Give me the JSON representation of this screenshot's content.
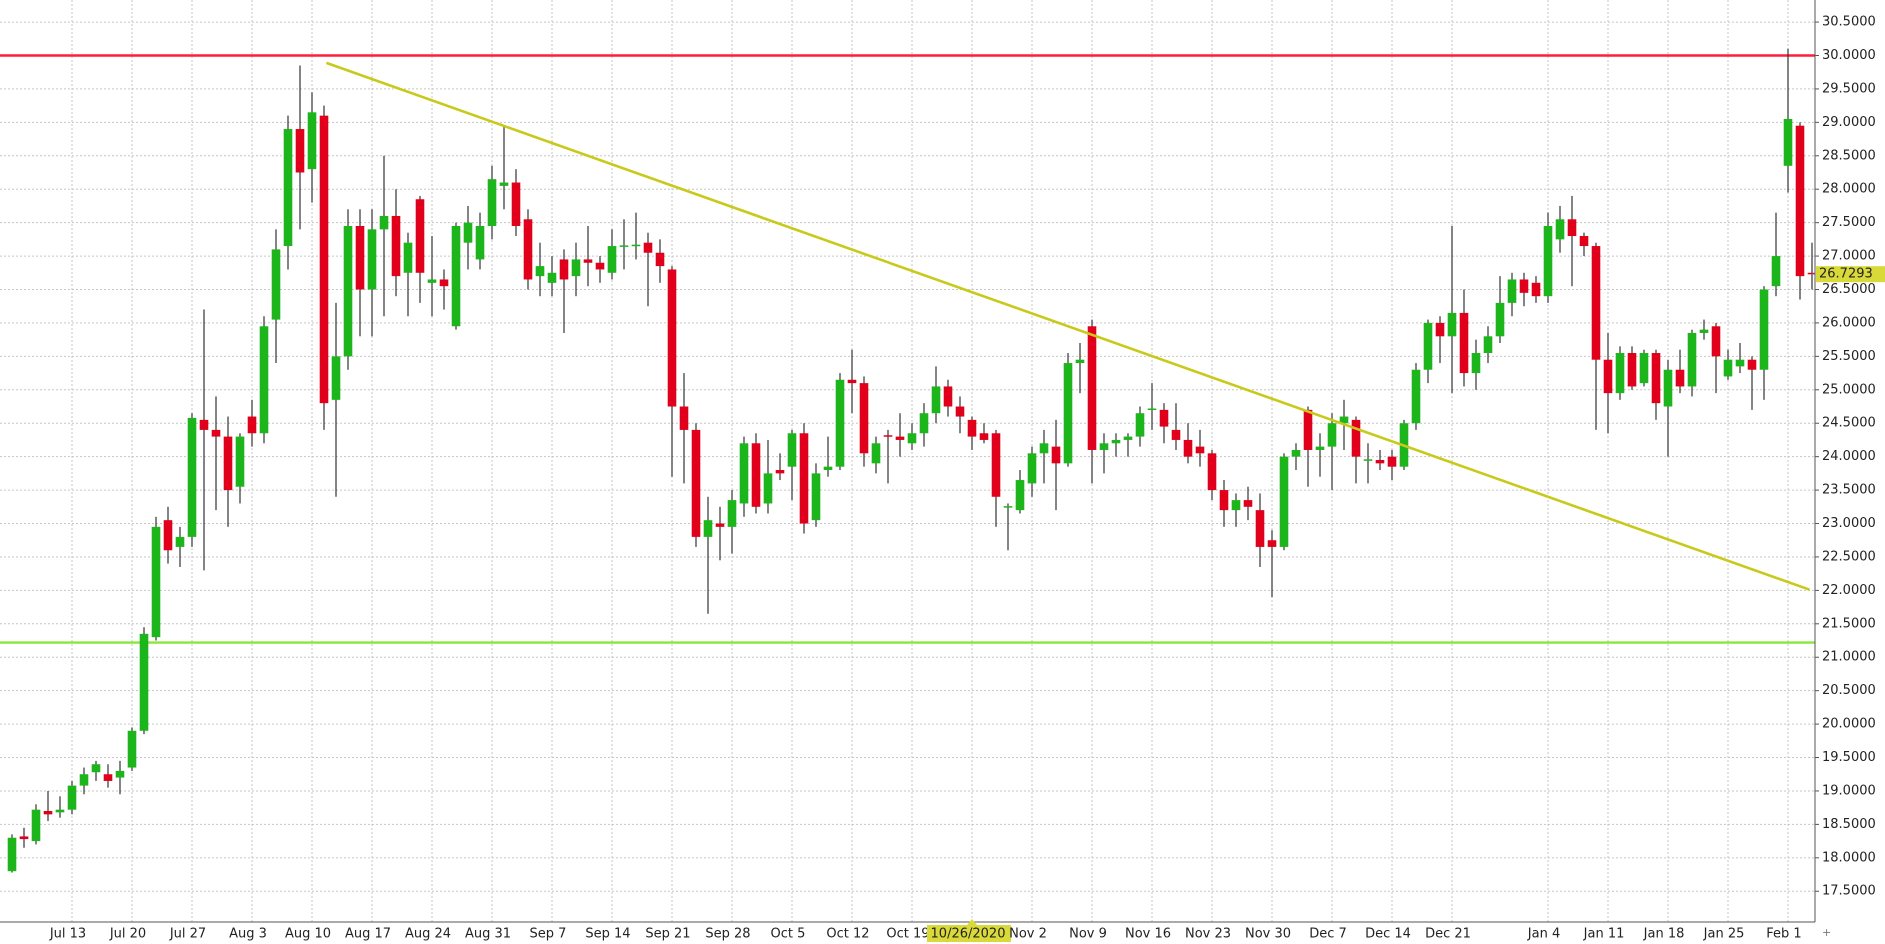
{
  "chart_data": {
    "type": "candlestick",
    "up_color": "#1cb51c",
    "down_color": "#e0001b",
    "doji_color": "#2a4a2a",
    "grid": true,
    "ylim": [
      17.04,
      30.83
    ],
    "yticks": [
      {
        "value": 17.5,
        "label": "17.5000"
      },
      {
        "value": 18,
        "label": "18.0000"
      },
      {
        "value": 18.5,
        "label": "18.5000"
      },
      {
        "value": 19,
        "label": "19.0000"
      },
      {
        "value": 19.5,
        "label": "19.5000"
      },
      {
        "value": 20,
        "label": "20.0000"
      },
      {
        "value": 20.5,
        "label": "20.5000"
      },
      {
        "value": 21,
        "label": "21.0000"
      },
      {
        "value": 21.5,
        "label": "21.5000"
      },
      {
        "value": 22,
        "label": "22.0000"
      },
      {
        "value": 22.5,
        "label": "22.5000"
      },
      {
        "value": 23,
        "label": "23.0000"
      },
      {
        "value": 23.5,
        "label": "23.5000"
      },
      {
        "value": 24,
        "label": "24.0000"
      },
      {
        "value": 24.5,
        "label": "24.5000"
      },
      {
        "value": 25,
        "label": "25.0000"
      },
      {
        "value": 25.5,
        "label": "25.5000"
      },
      {
        "value": 26,
        "label": "26.0000"
      },
      {
        "value": 26.5,
        "label": "26.5000"
      },
      {
        "value": 27,
        "label": "27.0000"
      },
      {
        "value": 27.5,
        "label": "27.5000"
      },
      {
        "value": 28,
        "label": "28.0000"
      },
      {
        "value": 28.5,
        "label": "28.5000"
      },
      {
        "value": 29,
        "label": "29.0000"
      },
      {
        "value": 29.5,
        "label": "29.5000"
      },
      {
        "value": 30,
        "label": "30.0000"
      },
      {
        "value": 30.5,
        "label": "30.5000"
      }
    ],
    "highlight_index": 80,
    "categories": [
      null,
      null,
      null,
      null,
      null,
      "Jul 13",
      null,
      null,
      null,
      null,
      "Jul 20",
      null,
      null,
      null,
      null,
      "Jul 27",
      null,
      null,
      null,
      null,
      "Aug 3",
      null,
      null,
      null,
      null,
      "Aug 10",
      null,
      null,
      null,
      null,
      "Aug 17",
      null,
      null,
      null,
      null,
      "Aug 24",
      null,
      null,
      null,
      null,
      "Aug 31",
      null,
      null,
      null,
      null,
      "Sep 7",
      null,
      null,
      null,
      null,
      "Sep 14",
      null,
      null,
      null,
      null,
      "Sep 21",
      null,
      null,
      null,
      null,
      "Sep 28",
      null,
      null,
      null,
      null,
      "Oct 5",
      null,
      null,
      null,
      null,
      "Oct 12",
      null,
      null,
      null,
      null,
      "Oct 19",
      null,
      null,
      null,
      null,
      "10/26/2020",
      null,
      null,
      null,
      null,
      "Nov 2",
      null,
      null,
      null,
      null,
      "Nov 9",
      null,
      null,
      null,
      null,
      "Nov 16",
      null,
      null,
      null,
      null,
      "Nov 23",
      null,
      null,
      null,
      null,
      "Nov 30",
      null,
      null,
      null,
      null,
      "Dec 7",
      null,
      null,
      null,
      null,
      "Dec 14",
      null,
      null,
      null,
      null,
      "Dec 21",
      null,
      null,
      null,
      null,
      null,
      null,
      null,
      "Jan 4",
      null,
      null,
      null,
      null,
      "Jan 11",
      null,
      null,
      null,
      null,
      "Jan 18",
      null,
      null,
      null,
      null,
      "Jan 25",
      null,
      null,
      null,
      null,
      "Feb 1",
      null,
      null
    ],
    "open": [
      17.8,
      18.32,
      18.25,
      18.7,
      18.68,
      18.72,
      19.08,
      19.28,
      19.25,
      19.2,
      19.35,
      19.9,
      21.3,
      23.05,
      22.65,
      22.8,
      24.55,
      24.4,
      24.3,
      23.55,
      24.6,
      24.35,
      26.05,
      27.15,
      28.9,
      28.3,
      29.1,
      24.85,
      25.5,
      27.45,
      26.5,
      27.4,
      27.6,
      26.75,
      27.85,
      26.6,
      26.65,
      25.95,
      27.2,
      26.95,
      27.45,
      28.05,
      28.1,
      27.55,
      26.7,
      26.6,
      26.95,
      26.7,
      26.95,
      26.9,
      26.75,
      27.15,
      27.15,
      27.2,
      27.05,
      26.8,
      24.75,
      24.4,
      22.8,
      23.0,
      22.95,
      23.3,
      24.2,
      23.3,
      23.8,
      23.85,
      24.35,
      23.05,
      23.8,
      23.85,
      25.15,
      25.1,
      23.9,
      24.32,
      24.3,
      24.2,
      24.35,
      24.65,
      25.05,
      24.75,
      24.55,
      24.35,
      24.35,
      23.25,
      23.2,
      23.6,
      24.05,
      24.15,
      23.9,
      25.4,
      25.95,
      24.1,
      24.2,
      24.25,
      24.3,
      24.7,
      24.7,
      24.4,
      24.25,
      24.15,
      24.05,
      23.5,
      23.2,
      23.35,
      23.2,
      22.75,
      22.65,
      24.0,
      24.7,
      24.1,
      24.15,
      24.5,
      24.55,
      23.95,
      23.95,
      24.0,
      23.85,
      24.5,
      25.3,
      26.0,
      25.8,
      26.15,
      25.25,
      25.55,
      25.8,
      26.3,
      26.65,
      26.6,
      26.4,
      27.25,
      27.55,
      27.3,
      27.15,
      25.45,
      24.95,
      25.55,
      25.1,
      25.55,
      24.75,
      25.3,
      25.05,
      25.85,
      25.95,
      25.2,
      25.35,
      25.45,
      25.3,
      26.55,
      28.35,
      28.95,
      26.75
    ],
    "high": [
      18.35,
      18.45,
      18.8,
      19.0,
      18.92,
      19.15,
      19.35,
      19.45,
      19.4,
      19.45,
      19.95,
      21.45,
      23.1,
      23.25,
      22.95,
      24.65,
      26.2,
      24.9,
      24.6,
      24.35,
      24.85,
      26.1,
      27.4,
      29.1,
      29.85,
      29.45,
      29.25,
      26.3,
      27.7,
      27.7,
      27.7,
      28.5,
      28.0,
      27.35,
      27.9,
      27.3,
      26.8,
      27.5,
      27.75,
      27.65,
      28.35,
      28.95,
      28.3,
      27.7,
      27.2,
      27.0,
      27.1,
      27.2,
      27.45,
      27.0,
      27.4,
      27.55,
      27.65,
      27.35,
      27.25,
      26.85,
      25.25,
      24.5,
      23.4,
      23.25,
      23.5,
      24.3,
      24.35,
      24.25,
      24.05,
      24.4,
      24.5,
      23.9,
      24.3,
      25.25,
      25.6,
      25.2,
      24.3,
      24.4,
      24.65,
      24.5,
      24.8,
      25.35,
      25.15,
      24.9,
      24.6,
      24.5,
      24.4,
      23.3,
      23.8,
      24.15,
      24.4,
      24.55,
      25.55,
      25.7,
      26.05,
      24.35,
      24.35,
      24.35,
      24.75,
      25.1,
      24.8,
      24.8,
      24.5,
      24.4,
      24.1,
      23.65,
      23.45,
      23.55,
      23.45,
      22.9,
      24.05,
      24.2,
      24.75,
      24.35,
      24.65,
      24.85,
      24.6,
      24.2,
      24.1,
      24.1,
      24.55,
      25.4,
      26.05,
      26.1,
      27.45,
      26.5,
      25.75,
      25.95,
      26.7,
      26.75,
      26.75,
      26.7,
      27.65,
      27.75,
      27.9,
      27.35,
      27.2,
      25.85,
      25.65,
      25.65,
      25.6,
      25.6,
      25.45,
      25.6,
      25.9,
      26.05,
      26.0,
      25.6,
      25.7,
      25.5,
      26.55,
      27.65,
      30.1,
      29.0,
      27.2
    ],
    "low": [
      17.78,
      18.15,
      18.2,
      18.55,
      18.6,
      18.65,
      18.95,
      19.15,
      19.05,
      18.95,
      19.3,
      19.85,
      21.25,
      22.4,
      22.35,
      22.65,
      22.3,
      23.2,
      22.95,
      23.3,
      24.15,
      24.2,
      25.4,
      26.8,
      27.4,
      27.8,
      24.4,
      23.4,
      25.3,
      25.8,
      25.8,
      26.1,
      26.4,
      26.1,
      26.3,
      26.1,
      26.2,
      25.9,
      26.8,
      26.8,
      27.25,
      27.7,
      27.3,
      26.5,
      26.4,
      26.4,
      25.85,
      26.4,
      26.55,
      26.6,
      26.65,
      26.8,
      26.95,
      26.25,
      26.6,
      23.7,
      23.6,
      22.65,
      21.65,
      22.45,
      22.55,
      23.1,
      23.15,
      23.15,
      23.65,
      23.35,
      22.85,
      22.95,
      23.7,
      23.8,
      24.65,
      23.85,
      23.75,
      23.6,
      24.0,
      24.1,
      24.15,
      24.5,
      24.6,
      24.35,
      24.1,
      24.2,
      22.95,
      22.6,
      23.15,
      23.4,
      23.6,
      23.2,
      23.85,
      24.95,
      23.6,
      23.75,
      24.0,
      24.0,
      24.15,
      24.4,
      24.2,
      24.1,
      23.9,
      23.85,
      23.35,
      22.95,
      22.95,
      23.05,
      22.35,
      21.9,
      22.6,
      23.8,
      23.55,
      23.7,
      23.5,
      24.1,
      23.6,
      23.6,
      23.8,
      23.65,
      23.8,
      24.4,
      25.1,
      25.4,
      24.95,
      25.05,
      25.0,
      25.4,
      25.7,
      26.1,
      26.25,
      26.3,
      26.3,
      27.05,
      26.55,
      27.0,
      24.4,
      24.35,
      24.85,
      25.0,
      25.05,
      24.55,
      24.0,
      24.95,
      24.9,
      25.75,
      24.95,
      25.15,
      25.25,
      24.7,
      24.85,
      26.4,
      27.95,
      26.35,
      26.5
    ],
    "close": [
      18.3,
      18.28,
      18.72,
      18.65,
      18.72,
      19.08,
      19.25,
      19.4,
      19.15,
      19.3,
      19.9,
      21.35,
      22.95,
      22.6,
      22.8,
      24.58,
      24.4,
      24.3,
      23.5,
      24.3,
      24.35,
      25.95,
      27.1,
      28.9,
      28.25,
      29.15,
      24.8,
      25.5,
      27.45,
      26.5,
      27.4,
      27.6,
      26.7,
      27.2,
      26.75,
      26.65,
      26.55,
      27.45,
      27.5,
      27.45,
      28.15,
      28.1,
      27.45,
      26.65,
      26.85,
      26.75,
      26.65,
      26.95,
      26.9,
      26.8,
      27.15,
      27.16,
      27.17,
      27.05,
      26.85,
      24.75,
      24.4,
      22.8,
      23.05,
      22.95,
      23.35,
      24.2,
      23.25,
      23.75,
      23.75,
      24.35,
      23.0,
      23.75,
      23.85,
      25.15,
      25.1,
      24.05,
      24.2,
      24.3,
      24.25,
      24.35,
      24.65,
      25.05,
      24.75,
      24.6,
      24.3,
      24.25,
      23.4,
      23.26,
      23.65,
      24.05,
      24.2,
      23.9,
      25.4,
      25.45,
      24.1,
      24.2,
      24.25,
      24.3,
      24.65,
      24.72,
      24.45,
      24.25,
      24.0,
      24.05,
      23.5,
      23.2,
      23.35,
      23.25,
      22.65,
      22.65,
      24.0,
      24.1,
      24.1,
      24.15,
      24.5,
      24.6,
      24.0,
      23.96,
      23.9,
      23.85,
      24.5,
      25.3,
      26.0,
      25.8,
      26.15,
      25.25,
      25.55,
      25.8,
      26.3,
      26.65,
      26.45,
      26.4,
      27.45,
      27.55,
      27.3,
      27.15,
      25.45,
      24.95,
      25.55,
      25.05,
      25.55,
      24.8,
      25.3,
      25.05,
      25.85,
      25.9,
      25.5,
      25.45,
      25.45,
      25.3,
      26.5,
      27.0,
      29.05,
      26.7,
      26.7293
    ],
    "hlines": [
      {
        "value": 30,
        "color": "#ff1f3d"
      },
      {
        "value": 21.22,
        "color": "#86e83a"
      }
    ],
    "trendline": {
      "x": [
        26.2,
        149.8
      ],
      "values": [
        29.89,
        22.01
      ],
      "color": "#c9c91c"
    },
    "last_color": "#d9d93a"
  }
}
